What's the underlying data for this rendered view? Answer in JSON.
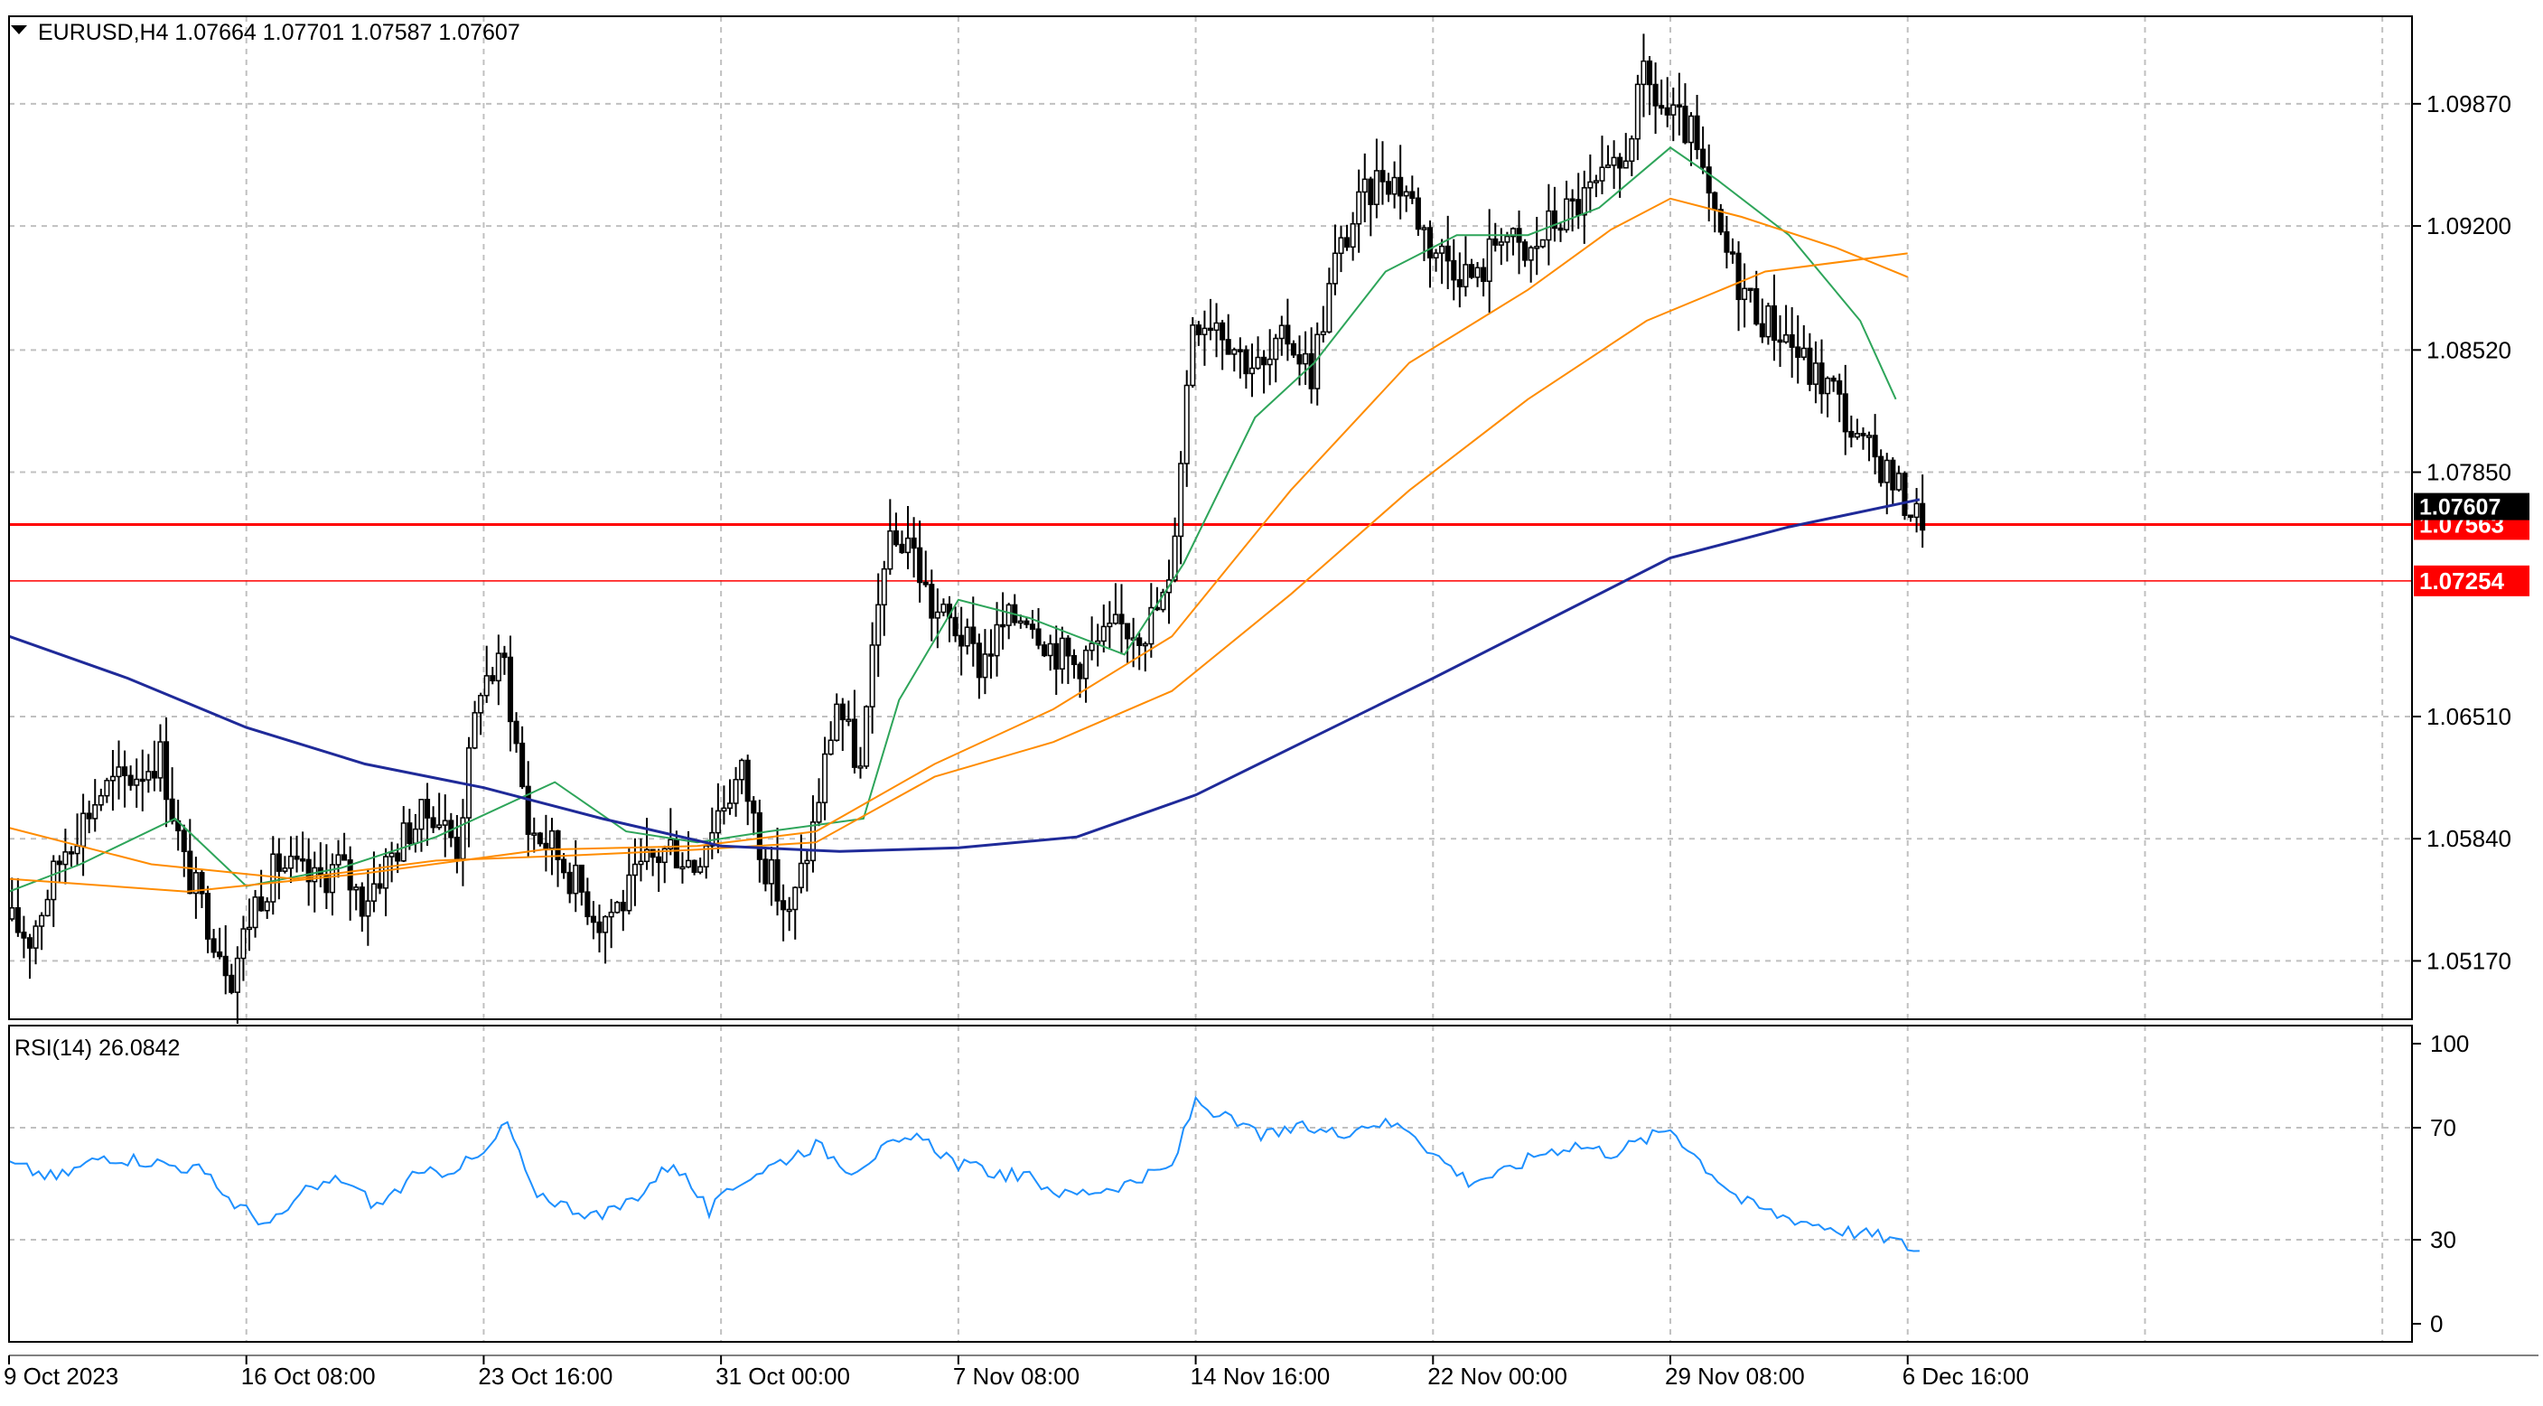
{
  "header": {
    "symbol_line": "EURUSD,H4  1.07664 1.07701 1.07587 1.07607",
    "rsi_line": "RSI(14) 26.0842"
  },
  "colors": {
    "bull_body": "#ffffff",
    "bear_body": "#000000",
    "wick": "#000000",
    "ma_short": "#2ea55a",
    "ma_mid": "#ff8c00",
    "ma_long": "#1f2a99",
    "hline": "#ff0000",
    "rsi": "#1e90ff",
    "grid": "#c0c0c0",
    "price_tag_bg": "#ff0000",
    "price_tag_text": "#ffffff",
    "current_tag_bg": "#000000"
  },
  "chart_data": [
    {
      "type": "candlestick",
      "symbol": "EURUSD",
      "timeframe": "H4",
      "title": "EURUSD,H4  1.07664 1.07701 1.07587 1.07607",
      "ohlc_last": {
        "open": 1.07664,
        "high": 1.07701,
        "low": 1.07587,
        "close": 1.07607
      },
      "ylim": [
        1.0485,
        1.1035
      ],
      "y_ticks": [
        "1.09870",
        "1.09200",
        "1.08520",
        "1.07850",
        "1.06510",
        "1.05840",
        "1.05170"
      ],
      "y_tick_values": [
        1.0987,
        1.092,
        1.0852,
        1.0785,
        1.0651,
        1.0584,
        1.0517
      ],
      "x_ticks": [
        "9 Oct 2023",
        "16 Oct 08:00",
        "23 Oct 16:00",
        "31 Oct 00:00",
        "7 Nov 08:00",
        "14 Nov 16:00",
        "22 Nov 00:00",
        "29 Nov 08:00",
        "6 Dec 16:00"
      ],
      "x_tick_values": [
        0,
        40,
        80,
        120,
        160,
        200,
        240,
        280,
        320
      ],
      "x_range": [
        0,
        405
      ],
      "anchor_path": [
        [
          0,
          1.054
        ],
        [
          4,
          1.053
        ],
        [
          10,
          1.058
        ],
        [
          16,
          1.061
        ],
        [
          22,
          1.062
        ],
        [
          26,
          1.063
        ],
        [
          30,
          1.057
        ],
        [
          34,
          1.054
        ],
        [
          38,
          1.051
        ],
        [
          42,
          1.055
        ],
        [
          46,
          1.057
        ],
        [
          52,
          1.056
        ],
        [
          56,
          1.057
        ],
        [
          60,
          1.055
        ],
        [
          64,
          1.057
        ],
        [
          68,
          1.059
        ],
        [
          72,
          1.06
        ],
        [
          76,
          1.058
        ],
        [
          80,
          1.067
        ],
        [
          84,
          1.068
        ],
        [
          88,
          1.059
        ],
        [
          92,
          1.058
        ],
        [
          96,
          1.056
        ],
        [
          100,
          1.054
        ],
        [
          104,
          1.055
        ],
        [
          108,
          1.057
        ],
        [
          112,
          1.058
        ],
        [
          116,
          1.057
        ],
        [
          120,
          1.06
        ],
        [
          124,
          1.062
        ],
        [
          128,
          1.057
        ],
        [
          132,
          1.054
        ],
        [
          136,
          1.059
        ],
        [
          140,
          1.066
        ],
        [
          144,
          1.062
        ],
        [
          148,
          1.074
        ],
        [
          152,
          1.075
        ],
        [
          156,
          1.071
        ],
        [
          160,
          1.07
        ],
        [
          164,
          1.068
        ],
        [
          168,
          1.07
        ],
        [
          172,
          1.071
        ],
        [
          176,
          1.069
        ],
        [
          180,
          1.068
        ],
        [
          184,
          1.069
        ],
        [
          188,
          1.07
        ],
        [
          192,
          1.07
        ],
        [
          196,
          1.072
        ],
        [
          200,
          1.087
        ],
        [
          204,
          1.087
        ],
        [
          208,
          1.085
        ],
        [
          212,
          1.084
        ],
        [
          216,
          1.086
        ],
        [
          220,
          1.084
        ],
        [
          224,
          1.09
        ],
        [
          228,
          1.093
        ],
        [
          232,
          1.095
        ],
        [
          236,
          1.094
        ],
        [
          240,
          1.091
        ],
        [
          244,
          1.09
        ],
        [
          248,
          1.089
        ],
        [
          252,
          1.092
        ],
        [
          256,
          1.09
        ],
        [
          260,
          1.092
        ],
        [
          264,
          1.093
        ],
        [
          268,
          1.094
        ],
        [
          272,
          1.095
        ],
        [
          276,
          1.1
        ],
        [
          280,
          1.098
        ],
        [
          284,
          1.097
        ],
        [
          288,
          1.092
        ],
        [
          292,
          1.089
        ],
        [
          296,
          1.087
        ],
        [
          300,
          1.086
        ],
        [
          304,
          1.084
        ],
        [
          308,
          1.083
        ],
        [
          312,
          1.08
        ],
        [
          316,
          1.079
        ],
        [
          320,
          1.077
        ],
        [
          322,
          1.0761
        ]
      ],
      "moving_averages": [
        {
          "kind": "short",
          "path": [
            [
              0,
              1.0555
            ],
            [
              12,
              1.057
            ],
            [
              28,
              1.0595
            ],
            [
              40,
              1.0558
            ],
            [
              56,
              1.0568
            ],
            [
              72,
              1.0585
            ],
            [
              92,
              1.0615
            ],
            [
              104,
              1.0588
            ],
            [
              116,
              1.0582
            ],
            [
              128,
              1.0588
            ],
            [
              144,
              1.0595
            ],
            [
              150,
              1.066
            ],
            [
              160,
              1.0715
            ],
            [
              172,
              1.0705
            ],
            [
              188,
              1.0685
            ],
            [
              198,
              1.0735
            ],
            [
              210,
              1.0815
            ],
            [
              220,
              1.0845
            ],
            [
              232,
              1.0895
            ],
            [
              244,
              1.0915
            ],
            [
              256,
              1.0915
            ],
            [
              268,
              1.093
            ],
            [
              280,
              1.0963
            ],
            [
              288,
              1.0945
            ],
            [
              300,
              1.0915
            ],
            [
              312,
              1.0868
            ],
            [
              318,
              1.0825
            ]
          ]
        },
        {
          "kind": "mid",
          "path": [
            [
              0,
              1.059
            ],
            [
              24,
              1.057
            ],
            [
              48,
              1.0562
            ],
            [
              72,
              1.0572
            ],
            [
              96,
              1.0575
            ],
            [
              116,
              1.0578
            ],
            [
              136,
              1.0582
            ],
            [
              156,
              1.0618
            ],
            [
              176,
              1.0637
            ],
            [
              196,
              1.0665
            ],
            [
              216,
              1.0718
            ],
            [
              236,
              1.0775
            ],
            [
              256,
              1.0825
            ],
            [
              276,
              1.0868
            ],
            [
              296,
              1.0895
            ],
            [
              320,
              1.0905
            ]
          ]
        },
        {
          "kind": "mid2",
          "path": [
            [
              0,
              1.0562
            ],
            [
              30,
              1.0555
            ],
            [
              60,
              1.0565
            ],
            [
              90,
              1.0578
            ],
            [
              116,
              1.058
            ],
            [
              136,
              1.0588
            ],
            [
              156,
              1.0625
            ],
            [
              176,
              1.0655
            ],
            [
              196,
              1.0695
            ],
            [
              216,
              1.0775
            ],
            [
              236,
              1.0845
            ],
            [
              256,
              1.0885
            ],
            [
              270,
              1.0918
            ],
            [
              280,
              1.0935
            ],
            [
              292,
              1.0925
            ],
            [
              308,
              1.0908
            ],
            [
              320,
              1.0892
            ]
          ]
        },
        {
          "kind": "long",
          "path": [
            [
              0,
              1.0695
            ],
            [
              20,
              1.0672
            ],
            [
              40,
              1.0645
            ],
            [
              60,
              1.0625
            ],
            [
              80,
              1.0612
            ],
            [
              100,
              1.0595
            ],
            [
              120,
              1.058
            ],
            [
              140,
              1.0577
            ],
            [
              160,
              1.0579
            ],
            [
              180,
              1.0585
            ],
            [
              200,
              1.0608
            ],
            [
              220,
              1.064
            ],
            [
              240,
              1.0672
            ],
            [
              260,
              1.0705
            ],
            [
              280,
              1.0738
            ],
            [
              300,
              1.0755
            ],
            [
              322,
              1.077
            ]
          ]
        }
      ],
      "horizontal_lines": [
        {
          "price": 1.07563,
          "label": "1.07563",
          "style": "solid"
        },
        {
          "price": 1.07254,
          "label": "1.07254",
          "style": "thin"
        }
      ],
      "current_price": {
        "price": 1.07607,
        "label": "1.07607"
      }
    },
    {
      "type": "line",
      "title": "RSI(14) 26.0842",
      "series_value": 26.0842,
      "ylim": [
        0,
        100
      ],
      "y_ticks": [
        "100",
        "70",
        "30",
        "0"
      ],
      "y_tick_values": [
        100,
        70,
        30,
        0
      ],
      "series": [
        {
          "path": [
            [
              0,
              57
            ],
            [
              8,
              52
            ],
            [
              16,
              60
            ],
            [
              24,
              58
            ],
            [
              32,
              55
            ],
            [
              38,
              43
            ],
            [
              44,
              35
            ],
            [
              50,
              47
            ],
            [
              56,
              52
            ],
            [
              62,
              42
            ],
            [
              68,
              52
            ],
            [
              74,
              55
            ],
            [
              80,
              60
            ],
            [
              84,
              72
            ],
            [
              88,
              48
            ],
            [
              94,
              42
            ],
            [
              100,
              38
            ],
            [
              106,
              46
            ],
            [
              112,
              58
            ],
            [
              118,
              40
            ],
            [
              124,
              52
            ],
            [
              130,
              58
            ],
            [
              136,
              64
            ],
            [
              142,
              55
            ],
            [
              148,
              63
            ],
            [
              154,
              66
            ],
            [
              160,
              57
            ],
            [
              166,
              54
            ],
            [
              172,
              52
            ],
            [
              178,
              46
            ],
            [
              184,
              48
            ],
            [
              190,
              51
            ],
            [
              196,
              56
            ],
            [
              200,
              80
            ],
            [
              206,
              72
            ],
            [
              212,
              67
            ],
            [
              218,
              70
            ],
            [
              224,
              68
            ],
            [
              230,
              72
            ],
            [
              236,
              70
            ],
            [
              240,
              61
            ],
            [
              246,
              51
            ],
            [
              252,
              54
            ],
            [
              258,
              61
            ],
            [
              264,
              64
            ],
            [
              270,
              61
            ],
            [
              276,
              66
            ],
            [
              280,
              70
            ],
            [
              286,
              56
            ],
            [
              292,
              44
            ],
            [
              298,
              39
            ],
            [
              304,
              36
            ],
            [
              310,
              33
            ],
            [
              316,
              31
            ],
            [
              322,
              26
            ]
          ]
        }
      ]
    }
  ]
}
